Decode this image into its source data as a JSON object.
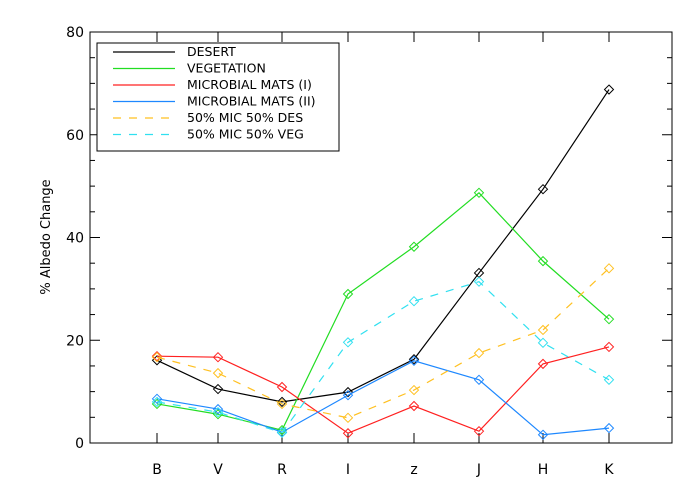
{
  "chart_data": {
    "type": "line",
    "title": "",
    "xlabel": "",
    "ylabel": "% Albedo Change",
    "ylim": [
      0,
      80
    ],
    "yticks": [
      "0",
      "20",
      "40",
      "60",
      "80"
    ],
    "categories": [
      "B",
      "V",
      "R",
      "I",
      "z",
      "J",
      "H",
      "K"
    ],
    "legend_position": "top-left",
    "series": [
      {
        "name": "DESERT",
        "color": "#000000",
        "dash": false,
        "values": [
          16.1,
          10.5,
          8.0,
          9.9,
          16.3,
          33.1,
          49.4,
          68.8
        ]
      },
      {
        "name": "VEGETATION",
        "color": "#22dd22",
        "dash": false,
        "values": [
          7.6,
          5.6,
          2.5,
          29.0,
          38.2,
          48.7,
          35.4,
          24.1
        ]
      },
      {
        "name": "MICROBIAL MATS (I)",
        "color": "#ff2020",
        "dash": false,
        "values": [
          16.9,
          16.7,
          10.9,
          1.9,
          7.2,
          2.3,
          15.4,
          18.7
        ]
      },
      {
        "name": "MICROBIAL MATS (II)",
        "color": "#1e88ff",
        "dash": false,
        "values": [
          8.6,
          6.6,
          2.1,
          9.3,
          16.0,
          12.3,
          1.6,
          2.9
        ]
      },
      {
        "name": "50% MIC 50% DES",
        "color": "#ffc020",
        "dash": true,
        "values": [
          16.7,
          13.6,
          7.6,
          4.9,
          10.3,
          17.5,
          22.0,
          34.0
        ]
      },
      {
        "name": "50% MIC 50% VEG",
        "color": "#30e0f0",
        "dash": true,
        "values": [
          8.0,
          6.0,
          2.0,
          19.6,
          27.6,
          31.4,
          19.5,
          12.3
        ]
      }
    ]
  }
}
